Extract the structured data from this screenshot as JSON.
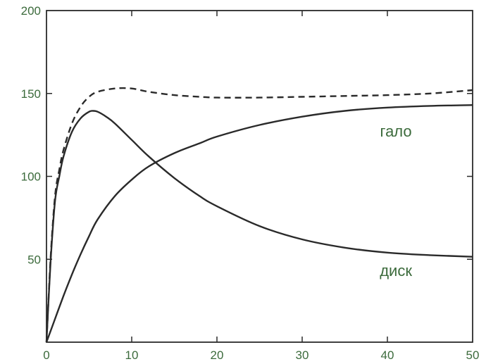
{
  "chart_data": {
    "type": "line",
    "title": "",
    "xlabel": "",
    "ylabel": "",
    "xlim": [
      0,
      50
    ],
    "ylim": [
      0,
      200
    ],
    "x_ticks": [
      "0",
      "10",
      "20",
      "30",
      "40",
      "50"
    ],
    "y_ticks": [
      "50",
      "100",
      "150",
      "200"
    ],
    "grid": false,
    "colors": {
      "line": "#2a2a2a",
      "text": "#3c6b3c",
      "frame": "#2a2a2a"
    },
    "series": [
      {
        "name": "гало",
        "style": "solid",
        "x": [
          0,
          1,
          2,
          3,
          4,
          5,
          6,
          8,
          10,
          12,
          15,
          18,
          20,
          25,
          30,
          35,
          40,
          45,
          50
        ],
        "y": [
          0,
          14,
          28,
          41,
          53,
          64,
          74,
          88,
          98,
          106,
          114,
          120,
          124,
          131,
          136,
          139.5,
          141.5,
          142.5,
          143
        ]
      },
      {
        "name": "диск",
        "style": "solid",
        "x": [
          0,
          0.5,
          1,
          1.5,
          2,
          3,
          4,
          5,
          5.5,
          6,
          7,
          8,
          10,
          12,
          15,
          18,
          20,
          25,
          30,
          35,
          40,
          45,
          50
        ],
        "y": [
          0,
          50,
          85,
          100,
          112,
          127,
          135,
          139,
          139.5,
          139,
          136,
          132,
          122,
          112,
          99,
          88,
          82,
          70,
          62,
          57,
          54,
          52.5,
          51.5
        ]
      },
      {
        "name": "",
        "style": "dashed",
        "x": [
          0,
          0.5,
          1,
          1.5,
          2,
          3,
          4,
          5,
          6,
          8,
          10,
          12,
          15,
          18,
          20,
          25,
          30,
          35,
          40,
          45,
          50
        ],
        "y": [
          0,
          52,
          88,
          104,
          116,
          132,
          142,
          148,
          151,
          153,
          153,
          151,
          149,
          148,
          147.5,
          147.5,
          148,
          148.5,
          149,
          150,
          152
        ]
      }
    ],
    "annotations": [
      {
        "text": "гало",
        "x": 41,
        "y": 124
      },
      {
        "text": "диск",
        "x": 41,
        "y": 40
      }
    ]
  }
}
